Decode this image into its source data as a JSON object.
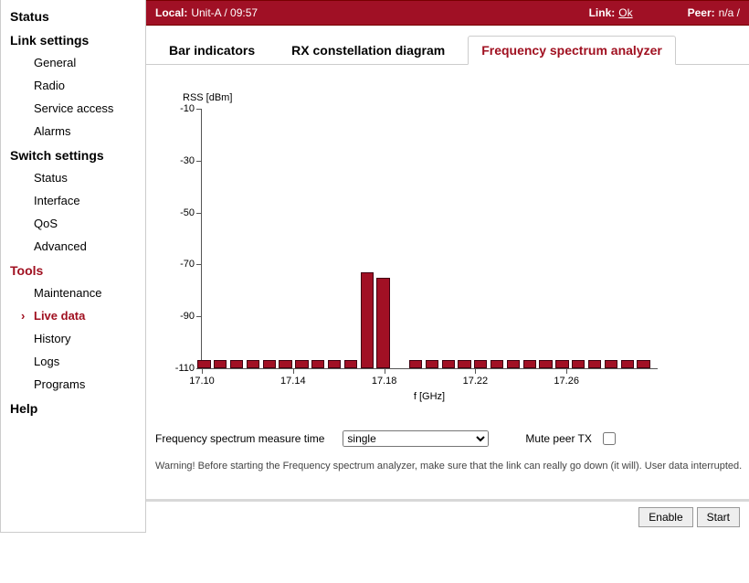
{
  "sidebar": {
    "sections": [
      {
        "title": "Status",
        "red": false,
        "items": []
      },
      {
        "title": "Link settings",
        "red": false,
        "items": [
          {
            "label": "General"
          },
          {
            "label": "Radio"
          },
          {
            "label": "Service access"
          },
          {
            "label": "Alarms"
          }
        ]
      },
      {
        "title": "Switch settings",
        "red": false,
        "items": [
          {
            "label": "Status"
          },
          {
            "label": "Interface"
          },
          {
            "label": "QoS"
          },
          {
            "label": "Advanced"
          }
        ]
      },
      {
        "title": "Tools",
        "red": true,
        "items": [
          {
            "label": "Maintenance"
          },
          {
            "label": "Live data",
            "active": true
          },
          {
            "label": "History"
          },
          {
            "label": "Logs"
          },
          {
            "label": "Programs"
          }
        ]
      },
      {
        "title": "Help",
        "red": false,
        "items": []
      }
    ]
  },
  "topbar": {
    "local_label": "Local:",
    "local_value": "Unit-A / 09:57",
    "link_label": "Link:",
    "link_value": "Ok",
    "peer_label": "Peer:",
    "peer_value": "n/a /"
  },
  "tabs": [
    {
      "label": "Bar indicators"
    },
    {
      "label": "RX constellation diagram"
    },
    {
      "label": "Frequency spectrum analyzer",
      "active": true
    }
  ],
  "chart": {
    "type": "bar",
    "ylabel": "RSS [dBm]",
    "xlabel": "f [GHz]",
    "ylim": [
      -110,
      -10
    ],
    "yticks": [
      -10,
      -30,
      -50,
      -70,
      -90,
      -110
    ],
    "xlim": [
      17.1,
      17.3
    ],
    "xticks": [
      17.1,
      17.14,
      17.18,
      17.22,
      17.26
    ],
    "bar_color": "#a11024",
    "bar_border": "#400010",
    "bar_width_frac_of_pitch": 0.8,
    "background_color": "#ffffff",
    "values": [
      -107,
      -107,
      -107,
      -107,
      -107,
      -107,
      -107,
      -107,
      -107,
      -107,
      -73,
      -75,
      0,
      -107,
      -107,
      -107,
      -107,
      -107,
      -107,
      -107,
      -107,
      -107,
      -107,
      -107,
      -107,
      -107,
      -107,
      -107
    ],
    "x_start": 17.101,
    "x_step": 0.00714,
    "skip_index": 12
  },
  "controls": {
    "measure_label": "Frequency spectrum measure time",
    "measure_value": "single",
    "mute_label": "Mute peer TX",
    "mute_checked": false
  },
  "warning": "Warning! Before starting the Frequency spectrum analyzer, make sure that the link can really go down (it will). User data interrupted.",
  "buttons": {
    "enable": "Enable",
    "start": "Start"
  }
}
